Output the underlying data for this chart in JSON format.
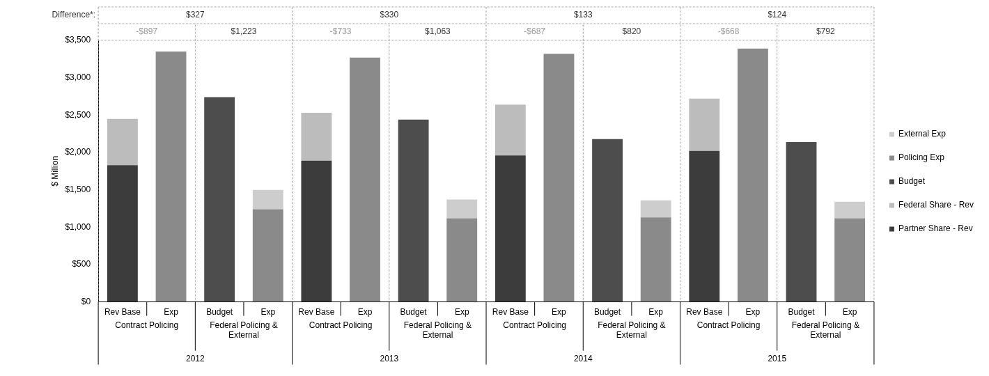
{
  "chart_data": {
    "type": "bar",
    "stacked": true,
    "ylabel": "$ Million",
    "categories": [
      "Rev Base",
      "Exp",
      "Budget",
      "Exp",
      "Rev Base",
      "Exp",
      "Budget",
      "Exp",
      "Rev Base",
      "Exp",
      "Budget",
      "Exp",
      "Rev Base",
      "Exp",
      "Budget",
      "Exp"
    ],
    "series": [
      {
        "name": "Partner Share - Rev",
        "color": "#3c3c3c",
        "values": [
          1830,
          null,
          null,
          null,
          1890,
          null,
          null,
          null,
          1960,
          null,
          null,
          null,
          2020,
          null,
          null,
          null
        ]
      },
      {
        "name": "Federal Share - Rev",
        "color": "#bcbcbc",
        "values": [
          620,
          null,
          null,
          null,
          640,
          null,
          null,
          null,
          680,
          null,
          null,
          null,
          700,
          null,
          null,
          null
        ]
      },
      {
        "name": "Budget",
        "color": "#4d4d4d",
        "values": [
          null,
          null,
          2740,
          null,
          null,
          null,
          2440,
          null,
          null,
          null,
          2180,
          null,
          null,
          null,
          2140,
          null
        ]
      },
      {
        "name": "Policing Exp",
        "color": "#8a8a8a",
        "values": [
          null,
          3350,
          null,
          1240,
          null,
          3270,
          null,
          1120,
          null,
          3320,
          null,
          1130,
          null,
          3390,
          null,
          1120
        ]
      },
      {
        "name": "External Exp",
        "color": "#cdcdcd",
        "values": [
          null,
          null,
          null,
          260,
          null,
          null,
          null,
          250,
          null,
          null,
          null,
          230,
          null,
          null,
          null,
          220
        ]
      }
    ],
    "ylim": [
      0,
      3500
    ],
    "yticks": [
      {
        "value": 0,
        "label": "$0"
      },
      {
        "value": 500,
        "label": "$500"
      },
      {
        "value": 1000,
        "label": "$1,000"
      },
      {
        "value": 1500,
        "label": "$1,500"
      },
      {
        "value": 2000,
        "label": "$2,000"
      },
      {
        "value": 2500,
        "label": "$2,500"
      },
      {
        "value": 3000,
        "label": "$3,000"
      },
      {
        "value": 3500,
        "label": "$3,500"
      }
    ],
    "grid": false,
    "legend": "right",
    "annotations": [
      "Difference*:",
      "$327",
      "$330",
      "$133",
      "$124",
      "-$897",
      "$1,223",
      "-$733",
      "$1,063",
      "-$687",
      "$820",
      "-$668",
      "$792",
      "Contract Policing",
      "Federal Policing & External",
      "Contract Policing",
      "Federal Policing & External",
      "Contract Policing",
      "Federal Policing & External",
      "Contract Policing",
      "Federal Policing & External",
      "2012",
      "2013",
      "2014",
      "2015"
    ]
  }
}
